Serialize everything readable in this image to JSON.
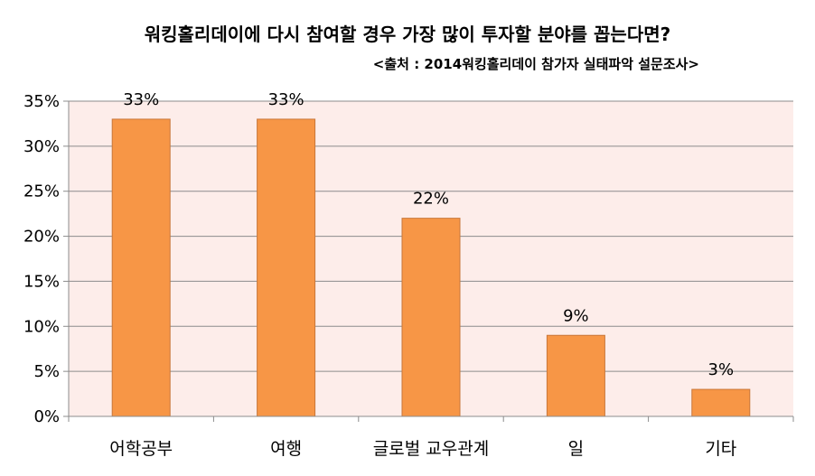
{
  "chart_data": {
    "type": "bar",
    "title": "워킹홀리데이에 다시 참여할 경우 가장 많이 투자할 분야를 꼽는다면?",
    "subtitle": "<출처 : 2014워킹홀리데이 참가자 실태파악 설문조사>",
    "categories": [
      "어학공부",
      "여행",
      "글로벌 교우관계",
      "일",
      "기타"
    ],
    "values": [
      33,
      33,
      22,
      9,
      3
    ],
    "data_labels": [
      "33%",
      "33%",
      "22%",
      "9%",
      "3%"
    ],
    "yticks": [
      "0%",
      "5%",
      "10%",
      "15%",
      "20%",
      "25%",
      "30%",
      "35%"
    ],
    "ylim": [
      0,
      35
    ],
    "xlabel": "",
    "ylabel": "",
    "grid": true,
    "legend": "none",
    "colors": {
      "bar": "#F79646",
      "bar_border": "#C8773A",
      "plot_bg": "#FDEDEA",
      "gridline": "#8C8C8C",
      "axis": "#8C8C8C"
    }
  }
}
